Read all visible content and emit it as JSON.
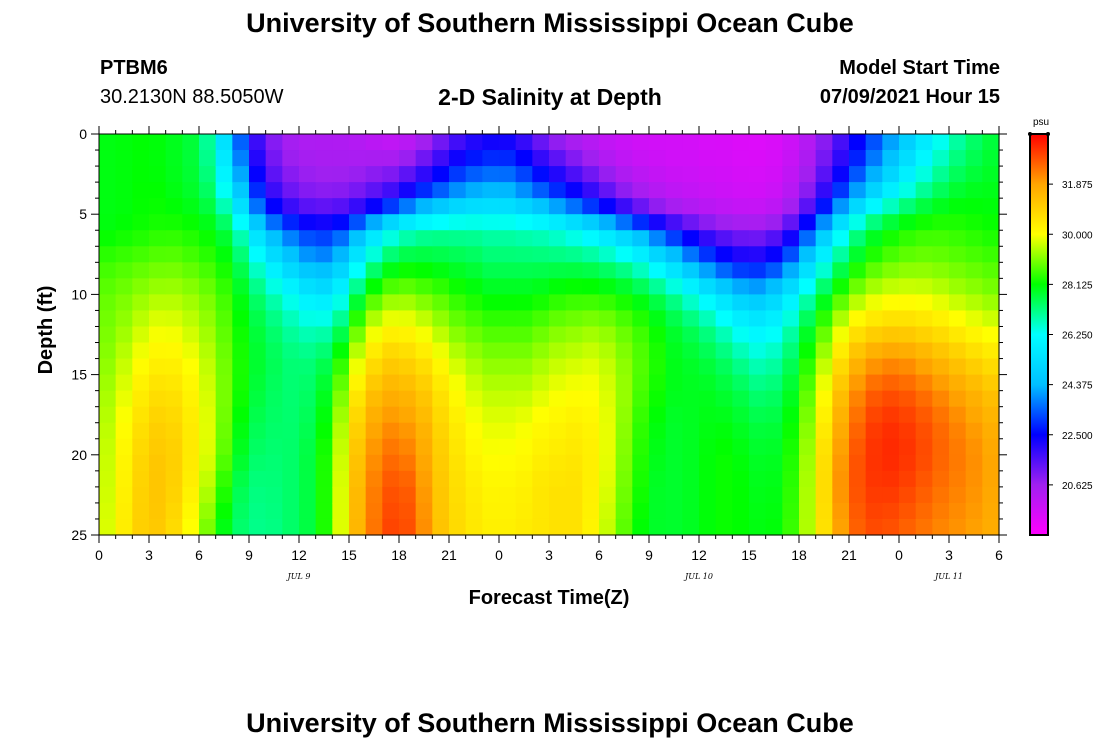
{
  "header": {
    "title": "University of Southern Mississippi Ocean Cube",
    "station_id": "PTBM6",
    "station_coords": "30.2130N  88.5050W",
    "plot_title": "2-D Salinity at Depth",
    "model_start_label": "Model Start Time",
    "model_start_value": "07/09/2021 Hour 15"
  },
  "footer": {
    "title": "University of Southern Mississippi Ocean Cube"
  },
  "chart_data": {
    "type": "heatmap",
    "title": "2-D Salinity at Depth",
    "xlabel": "Forecast Time(Z)",
    "ylabel": "Depth (ft)",
    "x_range_hours": [
      0,
      54
    ],
    "y_range": [
      0,
      25
    ],
    "y_reversed": true,
    "x_tick_labels": [
      "0",
      "3",
      "6",
      "9",
      "12",
      "15",
      "18",
      "21",
      "0",
      "3",
      "6",
      "9",
      "12",
      "15",
      "18",
      "21",
      "0",
      "3",
      "6"
    ],
    "y_tick_labels": [
      "0",
      "5",
      "10",
      "15",
      "20",
      "25"
    ],
    "date_labels": [
      {
        "text": "JUL 9",
        "hour": 12
      },
      {
        "text": "JUL 10",
        "hour": 36
      },
      {
        "text": "JUL 11",
        "hour": 51
      }
    ],
    "colorbar": {
      "unit": "psu",
      "min": 18.75,
      "max": 33.75,
      "labels": [
        "31.875",
        "30.000",
        "28.125",
        "26.250",
        "24.375",
        "22.500",
        "20.625"
      ],
      "colors": [
        "#ff00ff",
        "#a020f0",
        "#0000ff",
        "#00bfff",
        "#00ffff",
        "#00ff00",
        "#ffff00",
        "#ffa500",
        "#ff0000"
      ]
    },
    "grid_resolution": {
      "cols": 54,
      "rows": 25
    },
    "depths_ft": [
      0,
      2,
      4,
      5,
      6,
      8,
      10,
      12,
      14,
      16,
      18,
      20,
      22,
      25
    ],
    "salinity_psu": [
      [
        28.0,
        28.0,
        28.0,
        28.0,
        28.0,
        28.5,
        28.8,
        28.9,
        29.0,
        29.2,
        29.3,
        29.4,
        29.4,
        29.5
      ],
      [
        28.0,
        28.0,
        28.0,
        28.0,
        28.1,
        28.6,
        28.9,
        29.1,
        29.3,
        29.5,
        29.7,
        29.8,
        29.9,
        30.0
      ],
      [
        28.1,
        28.1,
        28.1,
        28.1,
        28.2,
        28.7,
        29.1,
        29.4,
        29.8,
        30.1,
        30.4,
        30.6,
        30.7,
        30.8
      ],
      [
        28.1,
        28.1,
        28.2,
        28.2,
        28.3,
        28.8,
        29.3,
        29.8,
        30.2,
        30.6,
        30.9,
        31.1,
        31.2,
        31.2
      ],
      [
        28.0,
        28.0,
        28.1,
        28.2,
        28.4,
        28.9,
        29.4,
        29.9,
        30.3,
        30.7,
        31.0,
        31.2,
        31.2,
        31.0
      ],
      [
        27.8,
        27.8,
        27.9,
        28.1,
        28.3,
        28.8,
        29.3,
        29.7,
        30.1,
        30.4,
        30.6,
        30.7,
        30.6,
        30.3
      ],
      [
        27.6,
        27.6,
        27.8,
        28.0,
        28.2,
        28.6,
        29.1,
        29.4,
        29.7,
        29.9,
        30.1,
        30.1,
        29.9,
        29.4
      ],
      [
        26.0,
        26.4,
        27.0,
        27.5,
        27.9,
        28.4,
        28.8,
        29.0,
        29.2,
        29.3,
        29.3,
        29.2,
        28.8,
        28.2
      ],
      [
        24.0,
        24.6,
        25.6,
        26.4,
        27.2,
        27.8,
        28.2,
        28.4,
        28.5,
        28.5,
        28.3,
        28.1,
        27.7,
        27.4
      ],
      [
        22.0,
        22.6,
        23.6,
        24.5,
        25.6,
        26.8,
        27.5,
        27.8,
        27.9,
        27.8,
        27.6,
        27.4,
        27.2,
        27.1
      ],
      [
        21.0,
        21.4,
        22.2,
        23.2,
        24.4,
        25.8,
        26.9,
        27.4,
        27.6,
        27.5,
        27.4,
        27.3,
        27.2,
        27.1
      ],
      [
        20.5,
        20.8,
        21.5,
        22.4,
        23.6,
        25.0,
        26.4,
        27.0,
        27.3,
        27.3,
        27.3,
        27.3,
        27.3,
        27.3
      ],
      [
        20.3,
        20.6,
        21.1,
        21.9,
        23.0,
        24.4,
        25.8,
        26.7,
        27.2,
        27.3,
        27.4,
        27.5,
        27.5,
        27.5
      ],
      [
        20.3,
        20.5,
        21.0,
        21.7,
        22.8,
        24.0,
        25.4,
        26.6,
        27.3,
        27.6,
        27.8,
        28.0,
        28.0,
        28.0
      ],
      [
        20.3,
        20.5,
        21.0,
        21.8,
        23.0,
        24.4,
        25.8,
        27.0,
        28.0,
        28.6,
        29.0,
        29.2,
        29.3,
        29.3
      ],
      [
        20.2,
        20.5,
        21.2,
        22.3,
        23.9,
        25.6,
        27.2,
        28.5,
        29.5,
        30.2,
        30.7,
        31.0,
        31.2,
        31.3
      ],
      [
        20.0,
        20.6,
        21.6,
        23.0,
        25.0,
        26.8,
        28.4,
        29.6,
        30.5,
        31.2,
        31.7,
        32.0,
        32.2,
        32.3
      ],
      [
        19.8,
        20.6,
        22.0,
        23.9,
        26.0,
        27.6,
        29.0,
        30.1,
        31.0,
        31.6,
        32.1,
        32.5,
        32.8,
        33.0
      ],
      [
        19.8,
        20.9,
        22.6,
        24.6,
        26.5,
        27.9,
        29.1,
        30.1,
        30.9,
        31.5,
        32.0,
        32.4,
        32.8,
        33.0
      ],
      [
        20.2,
        21.4,
        23.3,
        25.2,
        26.8,
        27.9,
        28.9,
        29.8,
        30.6,
        31.2,
        31.6,
        31.9,
        32.1,
        32.3
      ],
      [
        20.8,
        22.0,
        23.8,
        25.5,
        26.9,
        27.8,
        28.7,
        29.4,
        30.1,
        30.6,
        30.9,
        31.1,
        31.2,
        31.3
      ],
      [
        21.4,
        22.6,
        24.3,
        25.8,
        26.9,
        27.7,
        28.4,
        29.0,
        29.6,
        30.1,
        30.4,
        30.6,
        30.7,
        30.8
      ],
      [
        21.8,
        23.0,
        24.6,
        25.9,
        26.9,
        27.6,
        28.2,
        28.8,
        29.3,
        29.7,
        30.0,
        30.2,
        30.4,
        30.5
      ],
      [
        22.0,
        23.2,
        24.7,
        25.9,
        26.8,
        27.4,
        28.0,
        28.6,
        29.1,
        29.5,
        29.8,
        30.0,
        30.2,
        30.3
      ],
      [
        22.0,
        23.2,
        24.7,
        25.9,
        26.8,
        27.4,
        28.0,
        28.6,
        29.1,
        29.5,
        29.8,
        30.0,
        30.2,
        30.3
      ],
      [
        21.6,
        22.8,
        24.3,
        25.7,
        26.7,
        27.4,
        28.0,
        28.6,
        29.1,
        29.5,
        29.9,
        30.1,
        30.3,
        30.4
      ],
      [
        21.0,
        22.2,
        23.8,
        25.3,
        26.6,
        27.4,
        28.1,
        28.8,
        29.3,
        29.7,
        30.1,
        30.3,
        30.5,
        30.5
      ],
      [
        20.5,
        21.7,
        23.3,
        24.9,
        26.4,
        27.4,
        28.3,
        29.0,
        29.5,
        29.9,
        30.2,
        30.4,
        30.6,
        30.6
      ],
      [
        20.2,
        21.2,
        22.8,
        24.4,
        26.1,
        27.4,
        28.4,
        29.1,
        29.6,
        30.0,
        30.3,
        30.5,
        30.6,
        30.6
      ],
      [
        20.0,
        20.8,
        22.2,
        23.8,
        25.7,
        27.3,
        28.4,
        29.2,
        29.7,
        30.0,
        30.2,
        30.3,
        30.3,
        30.2
      ],
      [
        19.8,
        20.4,
        21.6,
        23.2,
        25.2,
        27.1,
        28.3,
        29.1,
        29.5,
        29.7,
        29.8,
        29.8,
        29.7,
        29.5
      ],
      [
        19.7,
        20.1,
        21.0,
        22.5,
        24.6,
        26.8,
        28.1,
        28.8,
        29.1,
        29.2,
        29.1,
        29.0,
        28.9,
        28.7
      ],
      [
        19.6,
        19.9,
        20.6,
        21.8,
        23.9,
        26.3,
        27.8,
        28.5,
        28.7,
        28.6,
        28.4,
        28.3,
        28.2,
        28.0
      ],
      [
        19.6,
        19.8,
        20.3,
        21.2,
        23.1,
        25.6,
        27.4,
        28.1,
        28.3,
        28.2,
        28.0,
        27.9,
        27.8,
        27.8
      ],
      [
        19.6,
        19.7,
        20.1,
        20.8,
        22.4,
        24.9,
        26.9,
        27.7,
        27.9,
        27.9,
        27.8,
        27.8,
        27.8,
        27.8
      ],
      [
        19.6,
        19.7,
        20.0,
        20.5,
        21.8,
        24.1,
        26.3,
        27.4,
        27.8,
        27.9,
        27.9,
        27.9,
        27.9,
        27.9
      ],
      [
        19.5,
        19.6,
        19.9,
        20.3,
        21.3,
        23.4,
        25.7,
        27.0,
        27.6,
        27.9,
        28.0,
        28.1,
        28.1,
        28.1
      ],
      [
        19.5,
        19.6,
        19.8,
        20.2,
        21.0,
        22.8,
        25.1,
        26.5,
        27.3,
        27.7,
        28.0,
        28.2,
        28.2,
        28.2
      ],
      [
        19.4,
        19.5,
        19.7,
        20.1,
        20.8,
        22.5,
        24.6,
        26.0,
        26.9,
        27.5,
        27.8,
        28.0,
        28.1,
        28.1
      ],
      [
        19.4,
        19.5,
        19.7,
        20.1,
        20.8,
        22.5,
        24.5,
        25.8,
        26.6,
        27.2,
        27.6,
        27.8,
        27.9,
        28.0
      ],
      [
        19.5,
        19.6,
        19.9,
        20.3,
        21.2,
        23.0,
        25.0,
        26.2,
        26.9,
        27.4,
        27.7,
        27.9,
        28.0,
        28.1
      ],
      [
        19.8,
        20.0,
        20.4,
        21.0,
        22.1,
        24.0,
        25.9,
        27.0,
        27.6,
        28.0,
        28.3,
        28.5,
        28.6,
        28.7
      ],
      [
        20.3,
        20.6,
        21.3,
        22.2,
        23.5,
        25.3,
        27.0,
        28.0,
        28.6,
        29.1,
        29.4,
        29.6,
        29.7,
        29.7
      ],
      [
        21.0,
        21.5,
        22.5,
        23.7,
        25.0,
        26.6,
        28.0,
        29.0,
        29.8,
        30.4,
        30.8,
        31.1,
        31.2,
        31.0
      ],
      [
        21.8,
        22.4,
        23.7,
        25.1,
        26.4,
        27.6,
        28.8,
        30.0,
        31.0,
        31.7,
        32.1,
        32.4,
        32.5,
        32.3
      ],
      [
        22.6,
        23.3,
        24.8,
        26.2,
        27.3,
        28.3,
        29.4,
        30.6,
        31.7,
        32.4,
        32.8,
        33.0,
        33.0,
        32.8
      ],
      [
        23.4,
        24.2,
        25.7,
        27.0,
        27.9,
        28.7,
        29.7,
        30.8,
        32.0,
        32.8,
        33.2,
        33.3,
        33.2,
        32.9
      ],
      [
        24.2,
        25.0,
        26.4,
        27.5,
        28.2,
        28.9,
        29.8,
        30.9,
        32.1,
        32.8,
        33.2,
        33.3,
        33.1,
        32.7
      ],
      [
        25.0,
        25.8,
        27.0,
        27.9,
        28.4,
        29.0,
        29.8,
        30.8,
        31.9,
        32.6,
        33.0,
        33.1,
        32.9,
        32.5
      ],
      [
        25.8,
        26.5,
        27.5,
        28.1,
        28.5,
        29.0,
        29.7,
        30.6,
        31.6,
        32.3,
        32.7,
        32.8,
        32.6,
        32.3
      ],
      [
        26.5,
        27.1,
        27.8,
        28.2,
        28.5,
        28.9,
        29.5,
        30.4,
        31.3,
        32.0,
        32.4,
        32.5,
        32.4,
        32.1
      ],
      [
        27.1,
        27.5,
        28.0,
        28.2,
        28.4,
        28.8,
        29.3,
        30.1,
        31.0,
        31.7,
        32.1,
        32.3,
        32.2,
        32.0
      ],
      [
        27.5,
        27.7,
        28.0,
        28.1,
        28.3,
        28.7,
        29.2,
        29.9,
        30.7,
        31.4,
        31.8,
        32.0,
        32.0,
        31.8
      ],
      [
        27.8,
        27.9,
        28.0,
        28.1,
        28.2,
        28.6,
        29.0,
        29.7,
        30.5,
        31.1,
        31.5,
        31.7,
        31.7,
        31.6
      ]
    ]
  }
}
